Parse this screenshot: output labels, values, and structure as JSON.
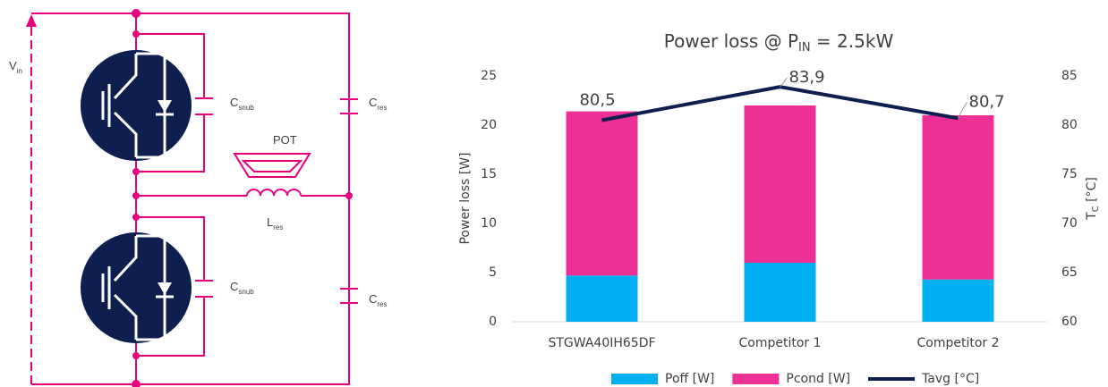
{
  "diagram": {
    "labels": [
      {
        "text": "V",
        "sub": "in"
      },
      {
        "text": "C",
        "sub": "snub"
      },
      {
        "text": "C",
        "sub": "res"
      },
      {
        "text": "POT"
      },
      {
        "text": "L",
        "sub": "res"
      },
      {
        "text": "C",
        "sub": "snub"
      },
      {
        "text": "C",
        "sub": "res"
      }
    ]
  },
  "chart_data": {
    "type": "bar",
    "title": {
      "text": "Power loss @ P",
      "sub": "IN",
      "tail": " = 2.5kW"
    },
    "y_label": "Power loss [W]",
    "y2_label": {
      "text": "T",
      "sub": "C",
      "tail": " [°C]"
    },
    "categories": [
      "STGWA40IH65DF",
      "Competitor 1",
      "Competitor 2"
    ],
    "series": [
      {
        "name": "Poff [W]",
        "color": "#00b0f0",
        "values": [
          4.7,
          6.0,
          4.3
        ]
      },
      {
        "name": "Pcond [W]",
        "color": "#ec3096",
        "values": [
          16.7,
          16.0,
          16.7
        ]
      },
      {
        "name": "Tavg [°C]",
        "color": "#0d1e4f",
        "type": "line",
        "axis": "y2",
        "values": [
          80.5,
          83.9,
          80.7
        ],
        "value_labels": [
          "80,5",
          "83,9",
          "80,7"
        ]
      }
    ],
    "ylim": [
      0,
      25
    ],
    "yticks": [
      0,
      5,
      10,
      15,
      20,
      25
    ],
    "y2lim": [
      60,
      85
    ],
    "y2ticks": [
      60,
      65,
      70,
      75,
      80,
      85
    ],
    "grid": false,
    "legend": "bottom"
  }
}
